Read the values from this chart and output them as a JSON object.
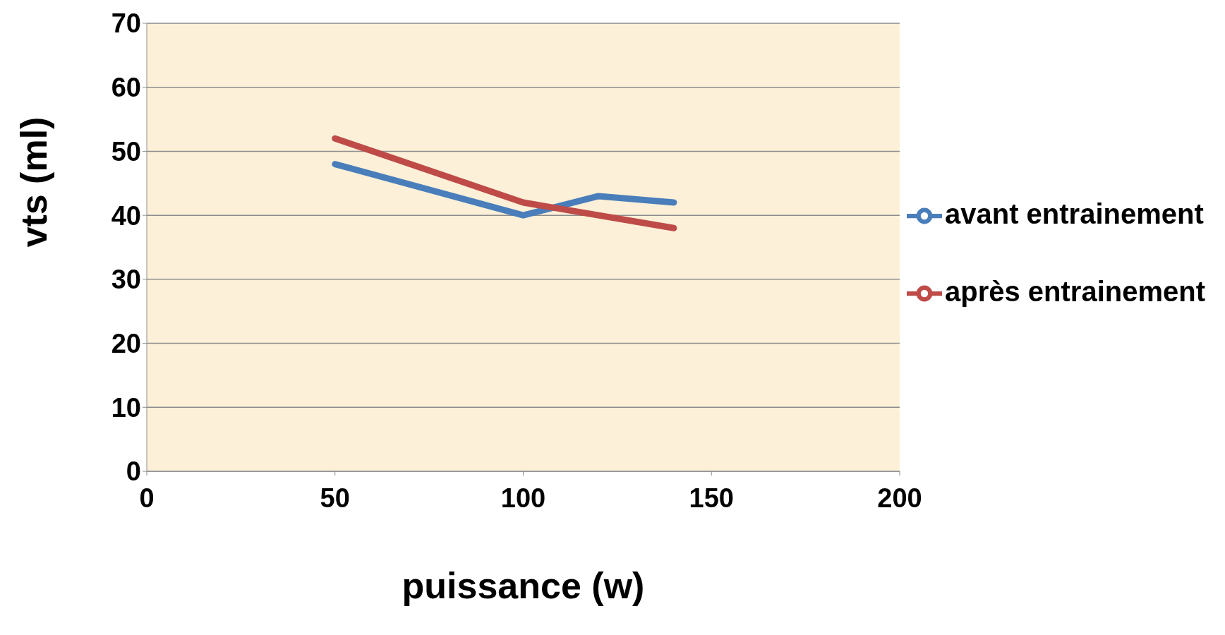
{
  "chart_data": {
    "type": "line",
    "xlabel": "puissance (w)",
    "ylabel": "vts (ml)",
    "xlim": [
      0,
      200
    ],
    "xticks": [
      0,
      50,
      100,
      150,
      200
    ],
    "ylim": [
      0,
      70
    ],
    "yticks": [
      0,
      10,
      20,
      30,
      40,
      50,
      60,
      70
    ],
    "grid": "y",
    "legend": "right",
    "marker": "none",
    "line_style": "solid",
    "series": [
      {
        "name": "avant entrainement",
        "color": "#4a7ebb",
        "x": [
          50,
          100,
          120,
          140
        ],
        "values": [
          48,
          40,
          43,
          42
        ]
      },
      {
        "name": "après entrainement",
        "color": "#be4b48",
        "x": [
          50,
          100,
          140
        ],
        "values": [
          52,
          42,
          38
        ]
      }
    ]
  }
}
